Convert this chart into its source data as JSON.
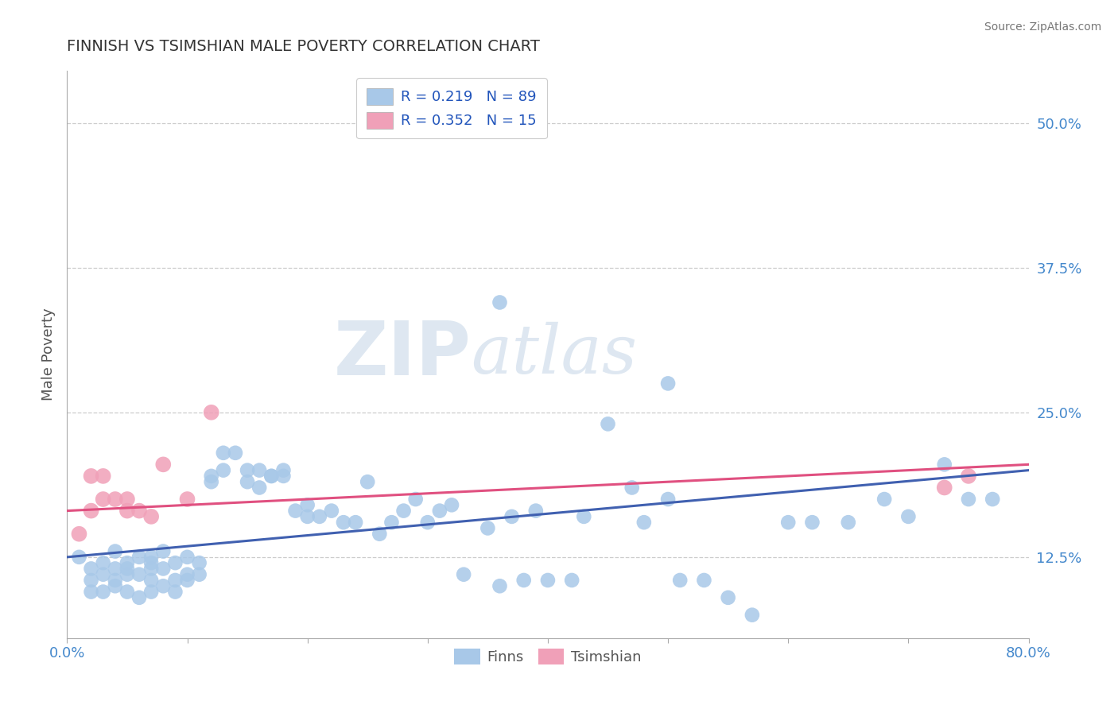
{
  "title": "FINNISH VS TSIMSHIAN MALE POVERTY CORRELATION CHART",
  "source": "Source: ZipAtlas.com",
  "ylabel": "Male Poverty",
  "xlim": [
    0.0,
    0.8
  ],
  "ylim": [
    0.055,
    0.545
  ],
  "xticks": [
    0.0,
    0.1,
    0.2,
    0.3,
    0.4,
    0.5,
    0.6,
    0.7,
    0.8
  ],
  "xticklabels": [
    "0.0%",
    "",
    "",
    "",
    "",
    "",
    "",
    "",
    "80.0%"
  ],
  "yticks": [
    0.125,
    0.25,
    0.375,
    0.5
  ],
  "yticklabels": [
    "12.5%",
    "25.0%",
    "37.5%",
    "50.0%"
  ],
  "grid_color": "#cccccc",
  "background_color": "#ffffff",
  "finns_color": "#a8c8e8",
  "tsimshian_color": "#f0a0b8",
  "finns_line_color": "#4060b0",
  "tsimshian_line_color": "#e05080",
  "legend_R_finns": "R = 0.219",
  "legend_N_finns": "N = 89",
  "legend_R_tsimshian": "R = 0.352",
  "legend_N_tsimshian": "N = 15",
  "watermark_zip": "ZIP",
  "watermark_atlas": "atlas",
  "finns_x": [
    0.01,
    0.02,
    0.02,
    0.02,
    0.03,
    0.03,
    0.03,
    0.04,
    0.04,
    0.04,
    0.04,
    0.05,
    0.05,
    0.05,
    0.05,
    0.06,
    0.06,
    0.06,
    0.07,
    0.07,
    0.07,
    0.07,
    0.07,
    0.08,
    0.08,
    0.08,
    0.09,
    0.09,
    0.09,
    0.1,
    0.1,
    0.1,
    0.11,
    0.11,
    0.12,
    0.12,
    0.13,
    0.13,
    0.14,
    0.15,
    0.15,
    0.16,
    0.16,
    0.17,
    0.17,
    0.18,
    0.18,
    0.19,
    0.2,
    0.2,
    0.21,
    0.22,
    0.23,
    0.24,
    0.25,
    0.26,
    0.27,
    0.28,
    0.29,
    0.3,
    0.31,
    0.32,
    0.33,
    0.35,
    0.36,
    0.37,
    0.38,
    0.39,
    0.4,
    0.42,
    0.43,
    0.45,
    0.47,
    0.48,
    0.5,
    0.51,
    0.53,
    0.55,
    0.57,
    0.6,
    0.62,
    0.65,
    0.68,
    0.7,
    0.73,
    0.75,
    0.77,
    0.36,
    0.5
  ],
  "finns_y": [
    0.125,
    0.115,
    0.105,
    0.095,
    0.12,
    0.11,
    0.095,
    0.115,
    0.105,
    0.13,
    0.1,
    0.12,
    0.11,
    0.095,
    0.115,
    0.125,
    0.11,
    0.09,
    0.12,
    0.105,
    0.115,
    0.095,
    0.125,
    0.115,
    0.1,
    0.13,
    0.105,
    0.12,
    0.095,
    0.125,
    0.11,
    0.105,
    0.12,
    0.11,
    0.195,
    0.19,
    0.2,
    0.215,
    0.215,
    0.2,
    0.19,
    0.2,
    0.185,
    0.195,
    0.195,
    0.2,
    0.195,
    0.165,
    0.16,
    0.17,
    0.16,
    0.165,
    0.155,
    0.155,
    0.19,
    0.145,
    0.155,
    0.165,
    0.175,
    0.155,
    0.165,
    0.17,
    0.11,
    0.15,
    0.1,
    0.16,
    0.105,
    0.165,
    0.105,
    0.105,
    0.16,
    0.24,
    0.185,
    0.155,
    0.175,
    0.105,
    0.105,
    0.09,
    0.075,
    0.155,
    0.155,
    0.155,
    0.175,
    0.16,
    0.205,
    0.175,
    0.175,
    0.345,
    0.275
  ],
  "tsimshian_x": [
    0.01,
    0.02,
    0.02,
    0.03,
    0.03,
    0.04,
    0.05,
    0.05,
    0.06,
    0.07,
    0.08,
    0.1,
    0.12,
    0.73,
    0.75
  ],
  "tsimshian_y": [
    0.145,
    0.165,
    0.195,
    0.175,
    0.195,
    0.175,
    0.175,
    0.165,
    0.165,
    0.16,
    0.205,
    0.175,
    0.25,
    0.185,
    0.195
  ],
  "finns_line_x0": 0.0,
  "finns_line_y0": 0.125,
  "finns_line_x1": 0.8,
  "finns_line_y1": 0.2,
  "tsimshian_line_x0": 0.0,
  "tsimshian_line_y0": 0.165,
  "tsimshian_line_x1": 0.8,
  "tsimshian_line_y1": 0.205
}
